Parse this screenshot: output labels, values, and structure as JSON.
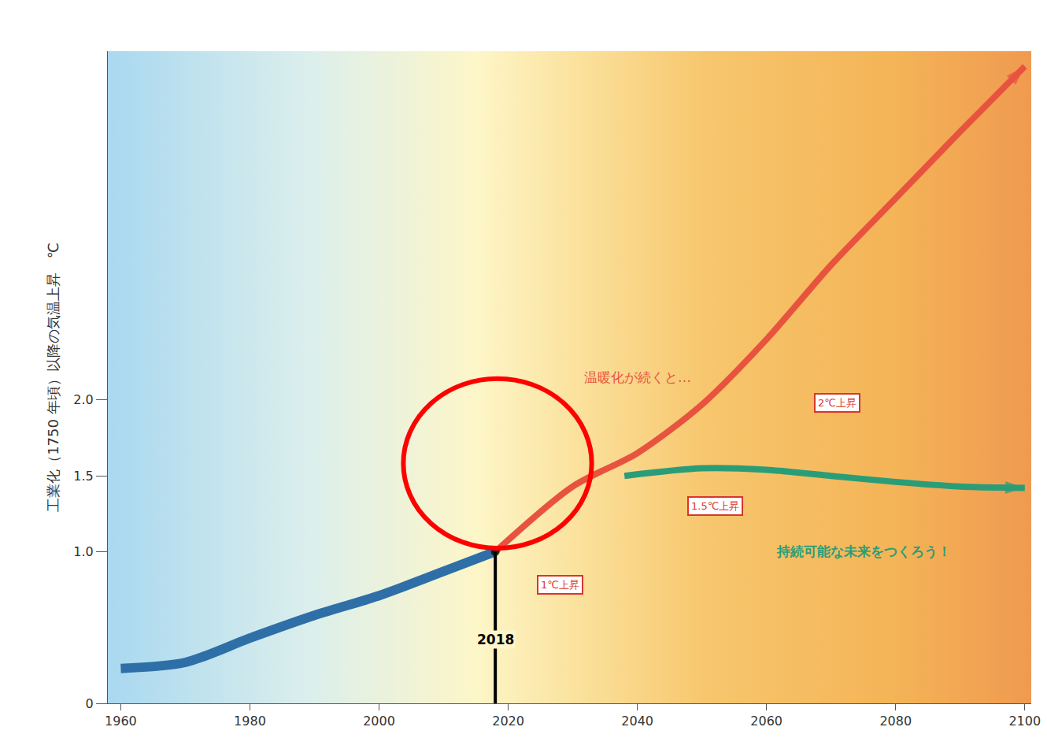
{
  "chart_data": {
    "type": "line",
    "ylabel": "工業化（1750 年頃）以降の気温上昇　℃",
    "xlim": [
      1958,
      2101
    ],
    "xticks": [
      1960,
      1980,
      2000,
      2020,
      2040,
      2060,
      2080,
      2100
    ],
    "ylim": [
      0,
      4.3
    ],
    "yticks": [
      0,
      {
        "value": 1,
        "label": "1.0"
      },
      1.5,
      {
        "value": 2,
        "label": "2.0"
      }
    ],
    "grid": false,
    "series": [
      {
        "x": [
          1960,
          1970,
          1980,
          1990,
          2000,
          2010,
          2018
        ],
        "values": [
          0.23,
          0.27,
          0.43,
          0.58,
          0.71,
          0.87,
          1.0
        ],
        "color": "#2e6fa7"
      },
      {
        "x": [
          2018,
          2030,
          2040,
          2050,
          2060,
          2070,
          2080,
          2090,
          2100
        ],
        "values": [
          1.0,
          1.43,
          1.65,
          1.97,
          2.4,
          2.89,
          3.33,
          3.77,
          4.2
        ],
        "color": "#e8533f",
        "marker": "arrow"
      },
      {
        "x": [
          2038,
          2050,
          2060,
          2070,
          2080,
          2090,
          2100
        ],
        "values": [
          1.5,
          1.55,
          1.54,
          1.5,
          1.46,
          1.43,
          1.42
        ],
        "color": "#2a9d78",
        "marker": "arrow"
      },
      {
        "x": [
          2018,
          2018
        ],
        "values": [
          0,
          1.0
        ],
        "color": "#000000",
        "marker": "dot"
      }
    ],
    "annotations": [
      {
        "text": "温暖化が続くと…",
        "x": 2040,
        "y": 2.15,
        "color": "#e8533f"
      },
      {
        "text": "持続可能な未来をつくろう！",
        "x": 2075,
        "y": 1.0,
        "color": "#2a9d78"
      },
      {
        "text": "1℃上昇",
        "x": 2028,
        "y": 0.78,
        "color": "#d9362b"
      },
      {
        "text": "1.5℃上昇",
        "x": 2052,
        "y": 1.3,
        "color": "#d9362b"
      },
      {
        "text": "2℃上昇",
        "x": 2071,
        "y": 1.98,
        "color": "#d9362b"
      },
      {
        "text": "2018",
        "x": 2018,
        "y": 0.42,
        "color": "#000000"
      }
    ]
  }
}
